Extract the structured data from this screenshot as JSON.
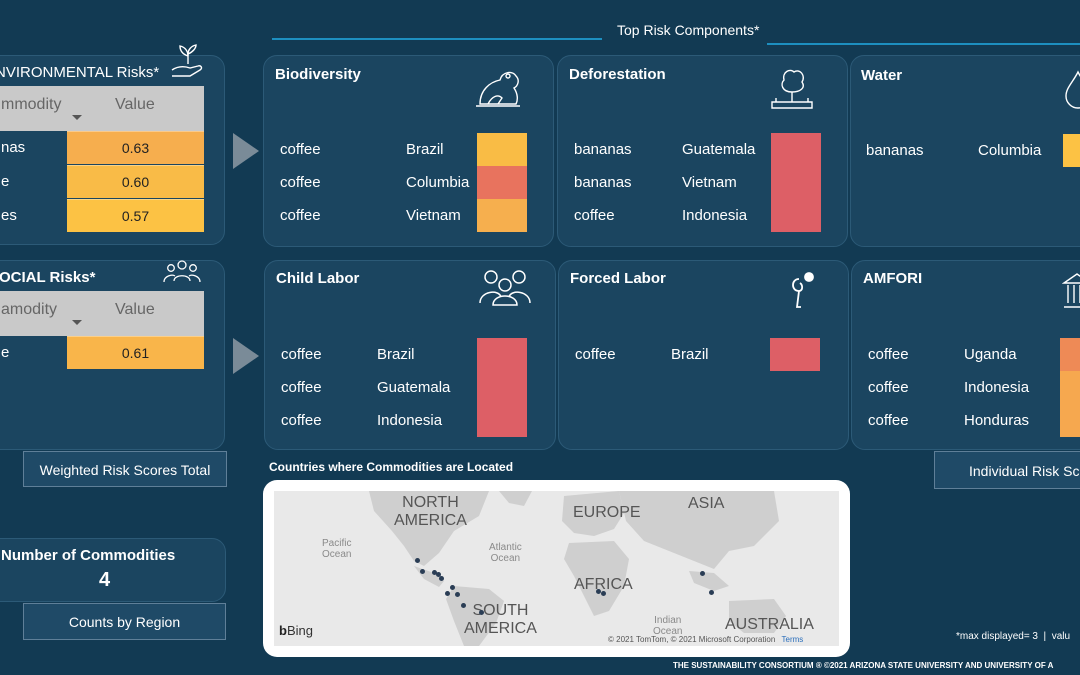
{
  "header": {
    "top_risk_title": "Top Risk Components*"
  },
  "environmental": {
    "title": "NVIRONMENTAL Risks*",
    "col_commodity": "mmodity",
    "col_value": "Value",
    "rows": [
      {
        "commodity": "nas",
        "value": "0.63",
        "color": "#f6ae4e"
      },
      {
        "commodity": "e",
        "value": "0.60",
        "color": "#f9bb47"
      },
      {
        "commodity": "es",
        "value": "0.57",
        "color": "#fcc244"
      }
    ],
    "icon": "plant-hand-icon"
  },
  "social": {
    "title": "OCIAL Risks*",
    "col_commodity": "amodity",
    "col_value": "Value",
    "rows": [
      {
        "commodity": "e",
        "value": "0.61",
        "color": "#f9b54a"
      }
    ],
    "icon": "people-group-icon"
  },
  "risk_cards": {
    "biodiversity": {
      "title": "Biodiversity",
      "icon": "frog-icon",
      "rows": [
        {
          "commodity": "coffee",
          "country": "Brazil",
          "color": "#f9bc45"
        },
        {
          "commodity": "coffee",
          "country": "Columbia",
          "color": "#e8735e"
        },
        {
          "commodity": "coffee",
          "country": "Vietnam",
          "color": "#f6af4e"
        }
      ]
    },
    "deforestation": {
      "title": "Deforestation",
      "icon": "tree-icon",
      "rows": [
        {
          "commodity": "bananas",
          "country": "Guatemala",
          "color": "#dd5f66"
        },
        {
          "commodity": "bananas",
          "country": "Vietnam",
          "color": "#dd5f66"
        },
        {
          "commodity": "coffee",
          "country": "Indonesia",
          "color": "#dd5f66"
        }
      ]
    },
    "water": {
      "title": "Water",
      "icon": "water-drop-icon",
      "rows": [
        {
          "commodity": "bananas",
          "country": "Columbia",
          "color": "#fcc244"
        }
      ]
    },
    "child_labor": {
      "title": "Child Labor",
      "icon": "children-icon",
      "rows": [
        {
          "commodity": "coffee",
          "country": "Brazil",
          "color": "#dd5f66"
        },
        {
          "commodity": "coffee",
          "country": "Guatemala",
          "color": "#dd5f66"
        },
        {
          "commodity": "coffee",
          "country": "Indonesia",
          "color": "#dd5f66"
        }
      ]
    },
    "forced_labor": {
      "title": "Forced Labor",
      "icon": "forced-labor-icon",
      "rows": [
        {
          "commodity": "coffee",
          "country": "Brazil",
          "color": "#dd5f66"
        }
      ]
    },
    "amfori": {
      "title": "AMFORI",
      "icon": "institution-icon",
      "rows": [
        {
          "commodity": "coffee",
          "country": "Uganda",
          "color": "#ee8a56"
        },
        {
          "commodity": "coffee",
          "country": "Indonesia",
          "color": "#f6a84f"
        },
        {
          "commodity": "coffee",
          "country": "Honduras",
          "color": "#f6a84f"
        }
      ]
    }
  },
  "buttons": {
    "weighted": "Weighted Risk Scores Total",
    "individual": "Individual Risk Sco",
    "counts_region": "Counts by Region"
  },
  "commodities": {
    "label": "Number of Commodities",
    "count": "4"
  },
  "map": {
    "title": "Countries where Commodities are Located",
    "labels": {
      "north_america": "NORTH\nAMERICA",
      "europe": "EUROPE",
      "asia": "ASIA",
      "africa": "AFRICA",
      "south_america": "SOUTH\nAMERICA",
      "australia": "AUSTRALIA",
      "pacific": "Pacific\nOcean",
      "atlantic": "Atlantic\nOcean",
      "indian": "Indian\nOcean"
    },
    "brand": "Bing",
    "attribution": "© 2021 TomTom, © 2021 Microsoft Corporation",
    "terms": "Terms"
  },
  "footnote": "*max displayed= 3  |  valu",
  "footer": "THE SUSTAINABILITY CONSORTIUM ®  ©2021 ARIZONA STATE UNIVERSITY AND UNIVERSITY OF A"
}
